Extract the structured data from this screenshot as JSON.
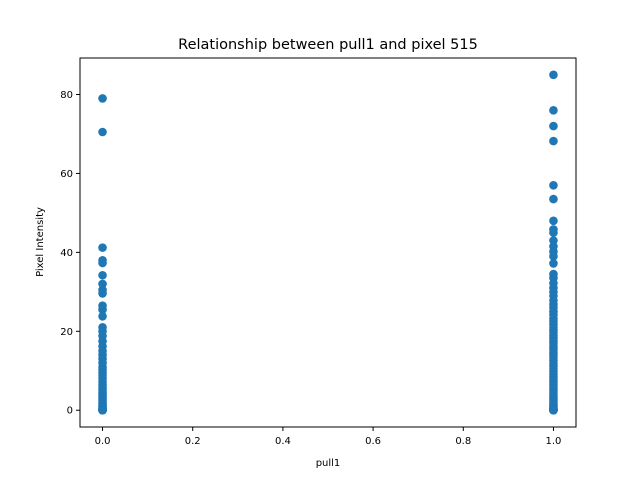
{
  "chart_data": {
    "type": "scatter",
    "title": "Relationship between pull1 and pixel 515",
    "xlabel": "pull1",
    "ylabel": "Pixel Intensity",
    "xlim": [
      -0.05,
      1.05
    ],
    "ylim": [
      -4.25,
      89.25
    ],
    "xticks": [
      "0.0",
      "0.2",
      "0.4",
      "0.6",
      "0.8",
      "1.0"
    ],
    "yticks": [
      "0",
      "20",
      "40",
      "60",
      "80"
    ],
    "grid": false,
    "marker_color": "#1f77b4",
    "series": [
      {
        "x": [
          0,
          0,
          0,
          0,
          0,
          0,
          0,
          0,
          0,
          0,
          0,
          0,
          0,
          0,
          0,
          0,
          0,
          0,
          0,
          0,
          0,
          0,
          0,
          0,
          0,
          0,
          0,
          0,
          0,
          0,
          0,
          0,
          0,
          0,
          0,
          0,
          0,
          0,
          0,
          0,
          0,
          0,
          0,
          0,
          0,
          0,
          0
        ],
        "y": [
          79,
          70.5,
          41.2,
          38,
          37.3,
          34.2,
          32,
          30.5,
          29.6,
          26.5,
          25.5,
          23.8,
          21,
          20,
          18.8,
          17.5,
          16.2,
          15,
          14,
          13,
          12,
          11,
          10.2,
          9.5,
          8.8,
          8,
          7.2,
          6.5,
          5.8,
          5.2,
          4.6,
          4,
          3.5,
          3,
          2.5,
          2,
          1.6,
          1.2,
          0.9,
          0.6,
          0.4,
          0.2,
          0,
          0,
          0,
          0,
          0
        ]
      },
      {
        "x": [
          1,
          1,
          1,
          1,
          1,
          1,
          1,
          1,
          1,
          1,
          1,
          1,
          1,
          1,
          1,
          1,
          1,
          1,
          1,
          1,
          1,
          1,
          1,
          1,
          1,
          1,
          1,
          1,
          1,
          1,
          1,
          1,
          1,
          1,
          1,
          1,
          1,
          1,
          1,
          1,
          1,
          1,
          1,
          1,
          1,
          1,
          1,
          1,
          1,
          1,
          1,
          1,
          1,
          1,
          1,
          1,
          1,
          1,
          1,
          1,
          1,
          1,
          1,
          1,
          1,
          1,
          1,
          1
        ],
        "y": [
          85,
          76,
          72,
          68.2,
          57,
          53.5,
          48,
          45.8,
          45,
          43,
          41.5,
          40.2,
          39,
          37.2,
          34.5,
          33.5,
          32.2,
          31,
          30,
          29,
          27.8,
          26.8,
          26,
          25,
          24.2,
          23.2,
          22.5,
          21.8,
          21,
          20.3,
          19.6,
          18.9,
          18.2,
          17.5,
          16.8,
          16.1,
          15.4,
          14.7,
          14,
          13.3,
          12.6,
          11.9,
          11.2,
          10.5,
          9.8,
          9.1,
          8.4,
          7.7,
          7,
          6.3,
          5.6,
          4.9,
          4.2,
          3.6,
          3,
          2.5,
          2,
          1.5,
          1.1,
          0.8,
          0.5,
          0.3,
          0.1,
          0,
          0,
          0,
          0,
          0
        ]
      }
    ]
  }
}
